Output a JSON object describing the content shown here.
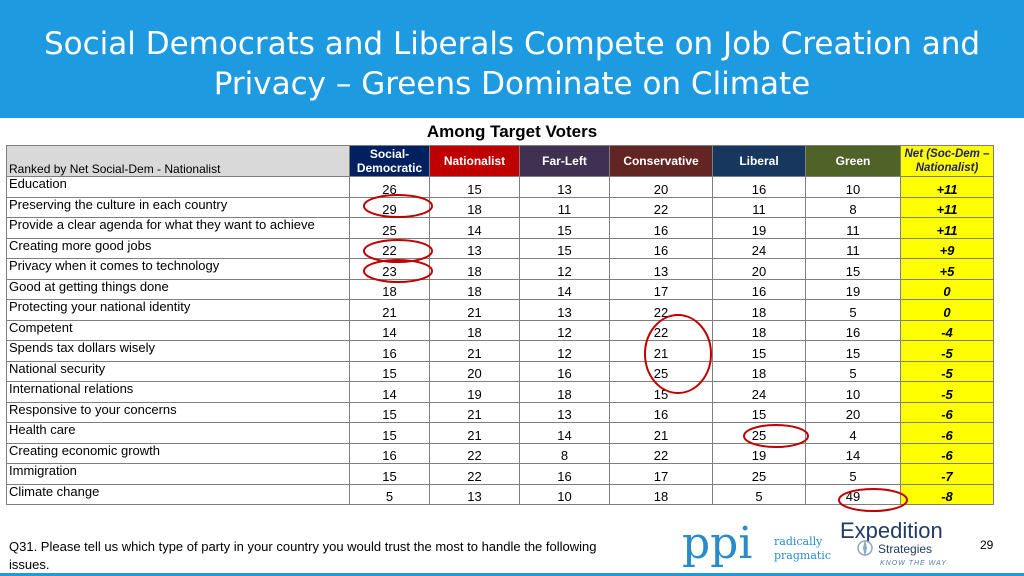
{
  "title_line1": "Social Democrats and Liberals Compete on Job Creation and",
  "title_line2": "Privacy – Greens Dominate on Climate",
  "subtitle": "Among Target Voters",
  "table": {
    "corner_label": "Ranked by Net Social-Dem - Nationalist",
    "columns": [
      {
        "label": "Social-Democratic",
        "color": "#002060"
      },
      {
        "label": "Nationalist",
        "color": "#C00000"
      },
      {
        "label": "Far-Left",
        "color": "#403152"
      },
      {
        "label": "Conservative",
        "color": "#632523"
      },
      {
        "label": "Liberal",
        "color": "#17375E"
      },
      {
        "label": "Green",
        "color": "#4F6228"
      },
      {
        "label": "Net (Soc-Dem – Nationalist)",
        "color": "#FFFF00"
      }
    ],
    "rows": [
      {
        "label": "Education",
        "values": [
          "26",
          "15",
          "13",
          "20",
          "16",
          "10"
        ],
        "net": "+11"
      },
      {
        "label": "Preserving the culture in each country",
        "values": [
          "29",
          "18",
          "11",
          "22",
          "11",
          "8"
        ],
        "net": "+11"
      },
      {
        "label": "Provide a clear agenda for what they want to achieve",
        "values": [
          "25",
          "14",
          "15",
          "16",
          "19",
          "11"
        ],
        "net": "+11"
      },
      {
        "label": "Creating more good jobs",
        "values": [
          "22",
          "13",
          "15",
          "16",
          "24",
          "11"
        ],
        "net": "+9"
      },
      {
        "label": "Privacy when it comes to technology",
        "values": [
          "23",
          "18",
          "12",
          "13",
          "20",
          "15"
        ],
        "net": "+5"
      },
      {
        "label": "Good at getting things done",
        "values": [
          "18",
          "18",
          "14",
          "17",
          "16",
          "19"
        ],
        "net": "0"
      },
      {
        "label": "Protecting your national identity",
        "values": [
          "21",
          "21",
          "13",
          "22",
          "18",
          "5"
        ],
        "net": "0"
      },
      {
        "label": "Competent",
        "values": [
          "14",
          "18",
          "12",
          "22",
          "18",
          "16"
        ],
        "net": "-4"
      },
      {
        "label": "Spends tax dollars wisely",
        "values": [
          "16",
          "21",
          "12",
          "21",
          "15",
          "15"
        ],
        "net": "-5"
      },
      {
        "label": "National security",
        "values": [
          "15",
          "20",
          "16",
          "25",
          "18",
          "5"
        ],
        "net": "-5"
      },
      {
        "label": "International relations",
        "values": [
          "14",
          "19",
          "18",
          "15",
          "24",
          "10"
        ],
        "net": "-5"
      },
      {
        "label": "Responsive to your concerns",
        "values": [
          "15",
          "21",
          "13",
          "16",
          "15",
          "20"
        ],
        "net": "-6"
      },
      {
        "label": "Health care",
        "values": [
          "15",
          "21",
          "14",
          "21",
          "25",
          "4"
        ],
        "net": "-6"
      },
      {
        "label": "Creating economic growth",
        "values": [
          "16",
          "22",
          "8",
          "22",
          "19",
          "14"
        ],
        "net": "-6"
      },
      {
        "label": "Immigration",
        "values": [
          "15",
          "22",
          "16",
          "17",
          "25",
          "5"
        ],
        "net": "-7"
      },
      {
        "label": "Climate change",
        "values": [
          "5",
          "13",
          "10",
          "18",
          "5",
          "49"
        ],
        "net": "-8"
      }
    ]
  },
  "footnote": "Q31. Please tell us which type of party in your country you would trust the most to handle the following issues.",
  "page_number": "29",
  "logo_ppi": {
    "mark": "ppi",
    "line1": "radically",
    "line2": "pragmatic"
  },
  "logo_expedition": {
    "line1": "Expedition",
    "line2": "Strategies",
    "tagline": "KNOW THE WAY"
  },
  "colors": {
    "banner": "#1E9BE0",
    "circle": "#C00000",
    "net_highlight": "#FFFF00"
  }
}
